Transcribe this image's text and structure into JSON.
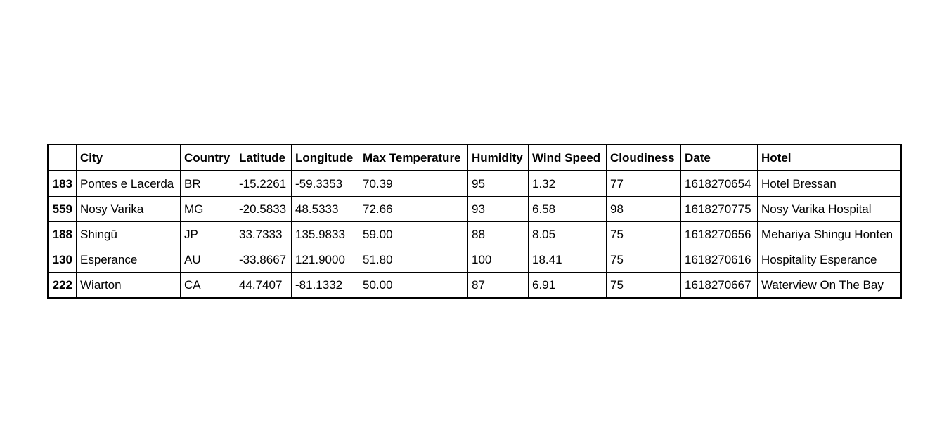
{
  "table": {
    "columns": [
      "",
      "City",
      "Country",
      "Latitude",
      "Longitude",
      "Max Temperature",
      "Humidity",
      "Wind Speed",
      "Cloudiness",
      "Date",
      "Hotel"
    ],
    "rows": [
      {
        "index": "183",
        "city": "Pontes e Lacerda",
        "country": "BR",
        "latitude": "-15.2261",
        "longitude": "-59.3353",
        "max_temperature": "70.39",
        "humidity": "95",
        "wind_speed": "1.32",
        "cloudiness": "77",
        "date": "1618270654",
        "hotel": "Hotel Bressan"
      },
      {
        "index": "559",
        "city": "Nosy Varika",
        "country": "MG",
        "latitude": "-20.5833",
        "longitude": "48.5333",
        "max_temperature": "72.66",
        "humidity": "93",
        "wind_speed": "6.58",
        "cloudiness": "98",
        "date": "1618270775",
        "hotel": "Nosy Varika Hospital"
      },
      {
        "index": "188",
        "city": "Shingū",
        "country": "JP",
        "latitude": "33.7333",
        "longitude": "135.9833",
        "max_temperature": "59.00",
        "humidity": "88",
        "wind_speed": "8.05",
        "cloudiness": "75",
        "date": "1618270656",
        "hotel": "Mehariya Shingu Honten"
      },
      {
        "index": "130",
        "city": "Esperance",
        "country": "AU",
        "latitude": "-33.8667",
        "longitude": "121.9000",
        "max_temperature": "51.80",
        "humidity": "100",
        "wind_speed": "18.41",
        "cloudiness": "75",
        "date": "1618270616",
        "hotel": "Hospitality Esperance"
      },
      {
        "index": "222",
        "city": "Wiarton",
        "country": "CA",
        "latitude": "44.7407",
        "longitude": "-81.1332",
        "max_temperature": "50.00",
        "humidity": "87",
        "wind_speed": "6.91",
        "cloudiness": "75",
        "date": "1618270667",
        "hotel": "Waterview On The Bay"
      }
    ]
  }
}
